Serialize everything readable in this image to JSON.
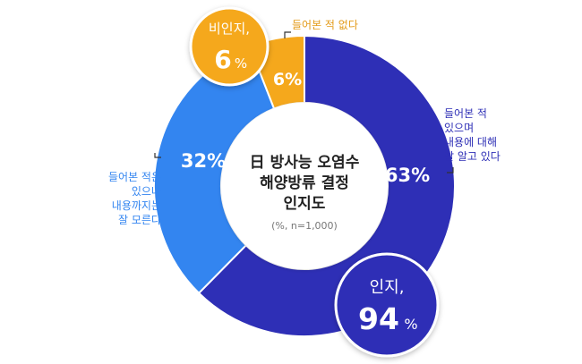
{
  "chart_data": {
    "type": "pie",
    "center": {
      "title_lines": [
        "日 방사능 오염수",
        "해양방류 결정",
        "인지도"
      ],
      "note": "(%, n=1,000)"
    },
    "slices": [
      {
        "key": "know_well",
        "label": "들어본 적 있으며 내용에 대해 잘 알고 있다",
        "label_lines": [
          "들어본 적",
          "있으며",
          "내용에 대해",
          "잘 알고 있다"
        ],
        "value": 63,
        "value_text": "63%",
        "color": "#2e2fb6"
      },
      {
        "key": "heard_only",
        "label": "들어본 적은 있으나 내용까지는 잘 모른다",
        "label_lines": [
          "들어본 적은",
          "있으나",
          "내용까지는",
          "잘 모른다"
        ],
        "value": 32,
        "value_text": "32%",
        "color": "#3385f0"
      },
      {
        "key": "never_heard",
        "label": "들어본 적 없다",
        "label_lines": [
          "들어본 적 없다"
        ],
        "value": 6,
        "value_text": "6%",
        "color": "#f5a81c"
      }
    ],
    "summary": [
      {
        "key": "aware",
        "label": "인지,",
        "value": 94,
        "value_text": "94",
        "unit": "%",
        "color": "#2e2fb6"
      },
      {
        "key": "unaware",
        "label": "비인지,",
        "value": 6,
        "value_text": "6",
        "unit": "%",
        "color": "#f5a81c"
      }
    ],
    "colors": {
      "know_label": "#2e2fb6",
      "heard_label": "#3385f0",
      "never_label": "#e39a17",
      "center_text": "#222222",
      "note_text": "#777777"
    }
  }
}
